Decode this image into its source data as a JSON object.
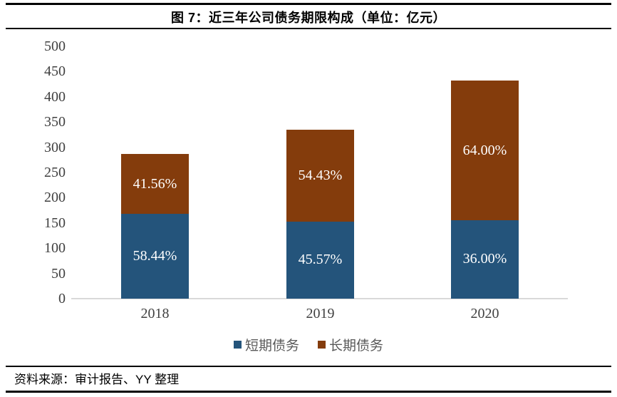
{
  "header": {
    "title": "图 7：近三年公司债务期限构成（单位：亿元）"
  },
  "footer": {
    "source": "资料来源：审计报告、YY 整理"
  },
  "chart_data": {
    "type": "bar",
    "stacked": true,
    "title": "图 7：近三年公司债务期限构成（单位：亿元）",
    "unit": "亿元",
    "categories": [
      "2018",
      "2019",
      "2020"
    ],
    "series": [
      {
        "key": "short-term-debt",
        "name": "短期债务",
        "color": "#24547B",
        "values": [
          167.7,
          152.7,
          155.5
        ],
        "pct_labels": [
          "58.44%",
          "45.57%",
          "36.00%"
        ]
      },
      {
        "key": "long-term-debt",
        "name": "长期债务",
        "color": "#843C0C",
        "values": [
          119.3,
          182.3,
          276.5
        ],
        "pct_labels": [
          "41.56%",
          "54.43%",
          "64.00%"
        ]
      }
    ],
    "totals": [
      287,
      335,
      432
    ],
    "ylim": [
      0,
      500
    ],
    "ytick_step": 50,
    "grid": false,
    "legend_position": "bottom",
    "axis_line_color": "#D9D9D9",
    "axis_label_color": "#404040"
  }
}
